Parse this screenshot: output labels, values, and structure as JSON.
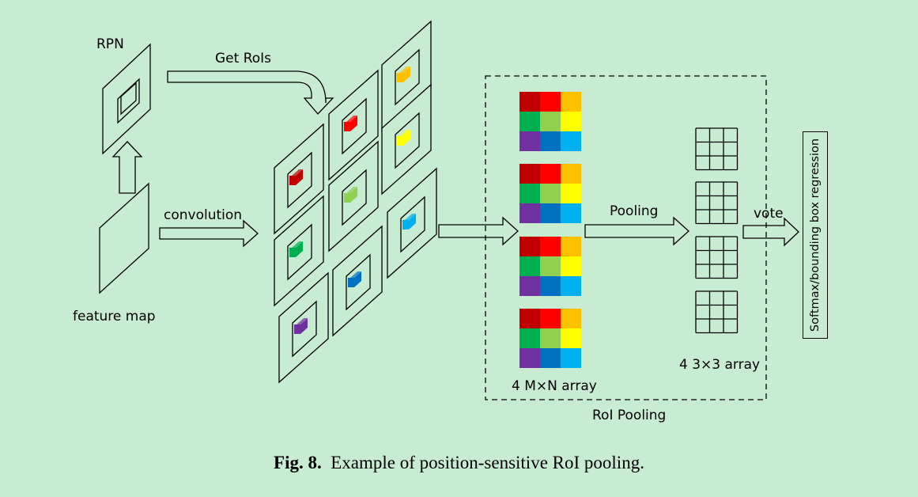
{
  "labels": {
    "rpn": "RPN",
    "get_rois": "Get RoIs",
    "convolution": "convolution",
    "feature_map": "feature map",
    "pooling": "Pooling",
    "vote": "vote",
    "mxn_array": "4 M×N array",
    "three_by_three": "4 3×3 array",
    "roi_pooling": "RoI Pooling",
    "softmax": "Softmax/bounding box regression"
  },
  "caption": {
    "label": "Fig. 8.",
    "text": "Example of position-sensitive RoI pooling."
  },
  "colors": {
    "background": "#c8ecd2",
    "grid": [
      "#c00000",
      "#ff0000",
      "#ffc000",
      "#00b050",
      "#92d050",
      "#ffff00",
      "#7030a0",
      "#0070c0",
      "#00b0f0"
    ]
  }
}
